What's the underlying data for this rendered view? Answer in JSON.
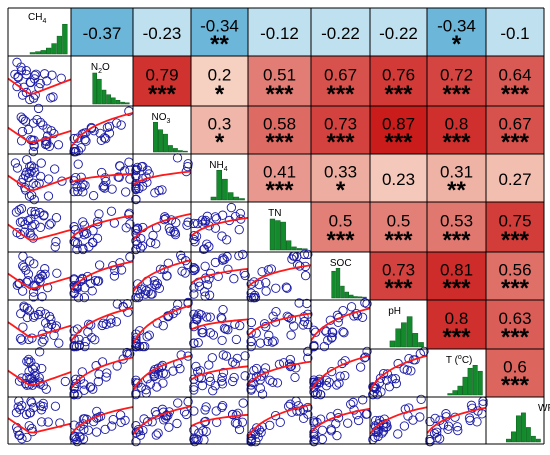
{
  "chart_data": {
    "type": "scatter-matrix",
    "variables": [
      {
        "label": "CH",
        "sub": "4",
        "sup": ""
      },
      {
        "label": "N",
        "sub": "2",
        "post": "O"
      },
      {
        "label": "NO",
        "sub": "3",
        "post": ""
      },
      {
        "label": "NH",
        "sub": "4",
        "post": ""
      },
      {
        "label": "TN",
        "sub": "",
        "post": ""
      },
      {
        "label": "SOC",
        "sub": "",
        "post": ""
      },
      {
        "label": "pH",
        "sub": "",
        "post": ""
      },
      {
        "label": "T (",
        "sup": "o",
        "post": "C)"
      },
      {
        "label": "WFPS (%)",
        "sub": "",
        "post": ""
      }
    ],
    "correlations": [
      {
        "row": 0,
        "col": 1,
        "r": "-0.37",
        "sig": ""
      },
      {
        "row": 0,
        "col": 2,
        "r": "-0.23",
        "sig": ""
      },
      {
        "row": 0,
        "col": 3,
        "r": "-0.34",
        "sig": "**"
      },
      {
        "row": 0,
        "col": 4,
        "r": "-0.12",
        "sig": ""
      },
      {
        "row": 0,
        "col": 5,
        "r": "-0.22",
        "sig": ""
      },
      {
        "row": 0,
        "col": 6,
        "r": "-0.22",
        "sig": ""
      },
      {
        "row": 0,
        "col": 7,
        "r": "-0.34",
        "sig": "*"
      },
      {
        "row": 0,
        "col": 8,
        "r": "-0.1",
        "sig": ""
      },
      {
        "row": 1,
        "col": 2,
        "r": "0.79",
        "sig": "***"
      },
      {
        "row": 1,
        "col": 3,
        "r": "0.2",
        "sig": "*"
      },
      {
        "row": 1,
        "col": 4,
        "r": "0.51",
        "sig": "***"
      },
      {
        "row": 1,
        "col": 5,
        "r": "0.67",
        "sig": "***"
      },
      {
        "row": 1,
        "col": 6,
        "r": "0.76",
        "sig": "***"
      },
      {
        "row": 1,
        "col": 7,
        "r": "0.72",
        "sig": "***"
      },
      {
        "row": 1,
        "col": 8,
        "r": "0.64",
        "sig": "***"
      },
      {
        "row": 2,
        "col": 3,
        "r": "0.3",
        "sig": "*"
      },
      {
        "row": 2,
        "col": 4,
        "r": "0.58",
        "sig": "***"
      },
      {
        "row": 2,
        "col": 5,
        "r": "0.73",
        "sig": "***"
      },
      {
        "row": 2,
        "col": 6,
        "r": "0.87",
        "sig": "***"
      },
      {
        "row": 2,
        "col": 7,
        "r": "0.8",
        "sig": "***"
      },
      {
        "row": 2,
        "col": 8,
        "r": "0.67",
        "sig": "***"
      },
      {
        "row": 3,
        "col": 4,
        "r": "0.41",
        "sig": "***"
      },
      {
        "row": 3,
        "col": 5,
        "r": "0.33",
        "sig": "*"
      },
      {
        "row": 3,
        "col": 6,
        "r": "0.23",
        "sig": ""
      },
      {
        "row": 3,
        "col": 7,
        "r": "0.31",
        "sig": "**"
      },
      {
        "row": 3,
        "col": 8,
        "r": "0.27",
        "sig": ""
      },
      {
        "row": 4,
        "col": 5,
        "r": "0.5",
        "sig": "***"
      },
      {
        "row": 4,
        "col": 6,
        "r": "0.5",
        "sig": "***"
      },
      {
        "row": 4,
        "col": 7,
        "r": "0.53",
        "sig": "***"
      },
      {
        "row": 4,
        "col": 8,
        "r": "0.75",
        "sig": "***"
      },
      {
        "row": 5,
        "col": 6,
        "r": "0.73",
        "sig": "***"
      },
      {
        "row": 5,
        "col": 7,
        "r": "0.81",
        "sig": "***"
      },
      {
        "row": 5,
        "col": 8,
        "r": "0.56",
        "sig": "***"
      },
      {
        "row": 6,
        "col": 7,
        "r": "0.8",
        "sig": "***"
      },
      {
        "row": 6,
        "col": 8,
        "r": "0.63",
        "sig": "***"
      },
      {
        "row": 7,
        "col": 8,
        "r": "0.6",
        "sig": "***"
      }
    ],
    "colors": {
      "scatter_point": "#1a1aa6",
      "fit_line": "#ff1a1a",
      "histogram_bar": "#138a2b",
      "grid_line": "#000000",
      "neg_dark": "#6bb6d9",
      "neg_light": "#bfe0ef"
    }
  }
}
